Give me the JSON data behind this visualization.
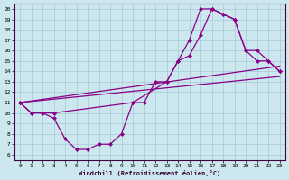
{
  "xlabel": "Windchill (Refroidissement éolien,°C)",
  "bg_color": "#cce8ee",
  "grid_color": "#a8c8d8",
  "line_color": "#880088",
  "xlim": [
    -0.5,
    23.5
  ],
  "ylim": [
    5.5,
    20.5
  ],
  "xticks": [
    0,
    1,
    2,
    3,
    4,
    5,
    6,
    7,
    8,
    9,
    10,
    11,
    12,
    13,
    14,
    15,
    16,
    17,
    18,
    19,
    20,
    21,
    22,
    23
  ],
  "yticks": [
    6,
    7,
    8,
    9,
    10,
    11,
    12,
    13,
    14,
    15,
    16,
    17,
    18,
    19,
    20
  ],
  "line1_x": [
    0,
    1,
    2,
    3,
    4,
    5,
    6,
    7,
    8,
    9,
    10,
    11,
    12,
    13,
    14,
    15,
    16,
    17,
    18,
    19,
    20,
    21,
    22,
    23
  ],
  "line1_y": [
    11,
    10,
    10,
    9.5,
    7.5,
    6.5,
    6.5,
    7,
    7,
    8,
    11,
    11,
    13,
    13,
    15,
    17,
    20,
    20,
    19.5,
    19,
    16,
    15,
    15,
    14
  ],
  "line2_x": [
    0,
    1,
    3,
    10,
    13,
    14,
    15,
    16,
    17,
    18,
    19,
    20,
    21,
    22,
    23
  ],
  "line2_y": [
    11,
    10,
    10,
    11,
    13,
    15,
    15.5,
    17.5,
    20,
    19.5,
    19,
    16,
    16,
    15,
    14
  ],
  "line3_x": [
    0,
    23
  ],
  "line3_y": [
    11,
    13.5
  ],
  "line4_x": [
    0,
    23
  ],
  "line4_y": [
    11,
    14.5
  ]
}
